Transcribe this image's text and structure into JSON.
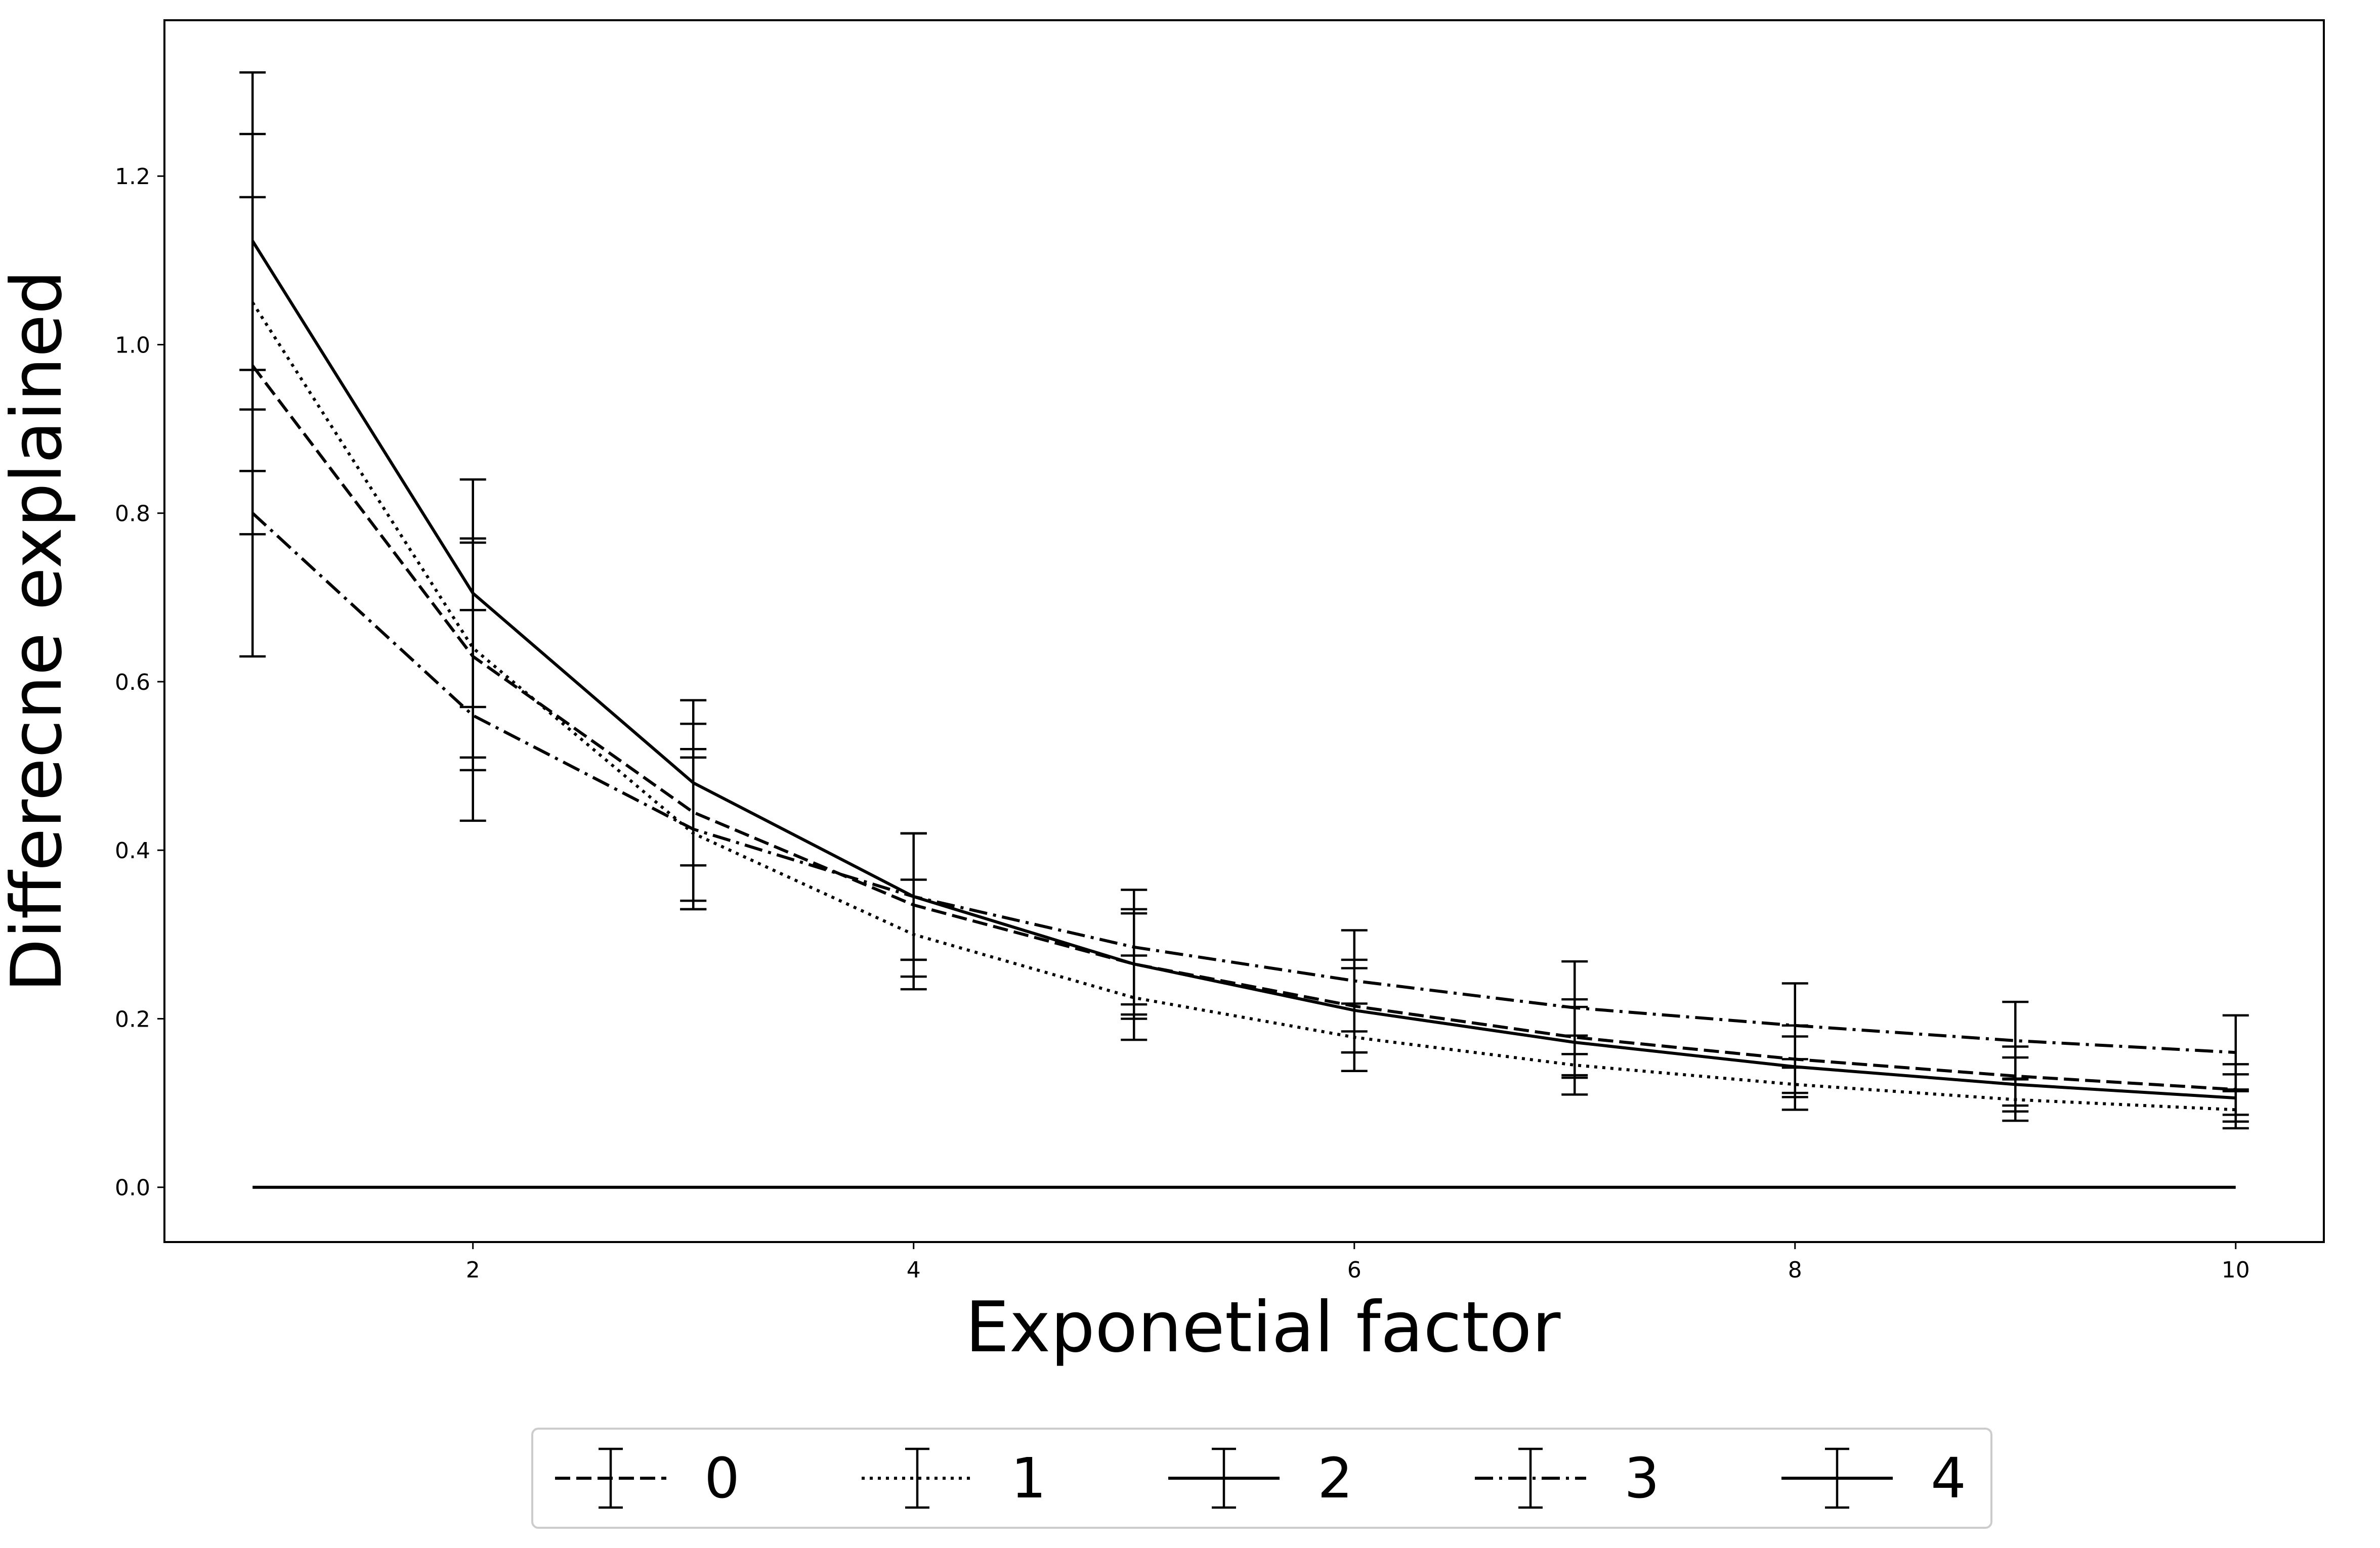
{
  "chart_data": {
    "type": "line",
    "xlabel": "Exponetial factor",
    "ylabel": "Differecne explained",
    "xlim": [
      0.6,
      10.4
    ],
    "ylim": [
      -0.065,
      1.385
    ],
    "xticks": [
      2,
      4,
      6,
      8,
      10
    ],
    "yticks": [
      0.0,
      0.2,
      0.4,
      0.6,
      0.8,
      1.0,
      1.2
    ],
    "xtick_labels": [
      "2",
      "4",
      "6",
      "8",
      "10"
    ],
    "ytick_labels": [
      "0.0",
      "0.2",
      "0.4",
      "0.6",
      "0.8",
      "1.0",
      "1.2"
    ],
    "grid": false,
    "legend_position": "bottom-center",
    "x": [
      1,
      2,
      3,
      4,
      5,
      6,
      7,
      8,
      9,
      10
    ],
    "baseline": {
      "y": 0.0,
      "x_range": [
        1,
        10
      ]
    },
    "series": [
      {
        "name": "0",
        "linestyle": "dashed",
        "values": [
          0.975,
          0.63,
          0.445,
          0.335,
          0.265,
          0.215,
          0.178,
          0.152,
          0.132,
          0.116
        ],
        "errors": [
          0.2,
          0.135,
          0.105,
          0.085,
          0.065,
          0.055,
          0.045,
          0.04,
          0.035,
          0.03
        ]
      },
      {
        "name": "1",
        "linestyle": "dotted",
        "values": [
          1.05,
          0.64,
          0.42,
          0.3,
          0.225,
          0.178,
          0.145,
          0.122,
          0.104,
          0.092
        ],
        "errors": [
          0.2,
          0.13,
          0.09,
          0.065,
          0.05,
          0.04,
          0.035,
          0.03,
          0.025,
          0.022
        ]
      },
      {
        "name": "2",
        "linestyle": "solid",
        "values": [
          1.123,
          0.705,
          0.48,
          0.345,
          0.265,
          0.21,
          0.172,
          0.143,
          0.122,
          0.106
        ],
        "errors": [
          0.2,
          0.135,
          0.098,
          0.075,
          0.06,
          0.05,
          0.042,
          0.036,
          0.032,
          0.028
        ]
      },
      {
        "name": "3",
        "linestyle": "dashdot",
        "values": [
          0.8,
          0.56,
          0.425,
          0.345,
          0.285,
          0.245,
          0.213,
          0.192,
          0.174,
          0.16
        ],
        "errors": [
          0.17,
          0.125,
          0.095,
          0.075,
          0.068,
          0.06,
          0.055,
          0.05,
          0.046,
          0.044
        ]
      },
      {
        "name": "4",
        "linestyle": "solid",
        "values": [
          0.0,
          0.0,
          0.0,
          0.0,
          0.0,
          0.0,
          0.0,
          0.0,
          0.0,
          0.0
        ],
        "errors": [
          0,
          0,
          0,
          0,
          0,
          0,
          0,
          0,
          0,
          0
        ]
      }
    ]
  }
}
